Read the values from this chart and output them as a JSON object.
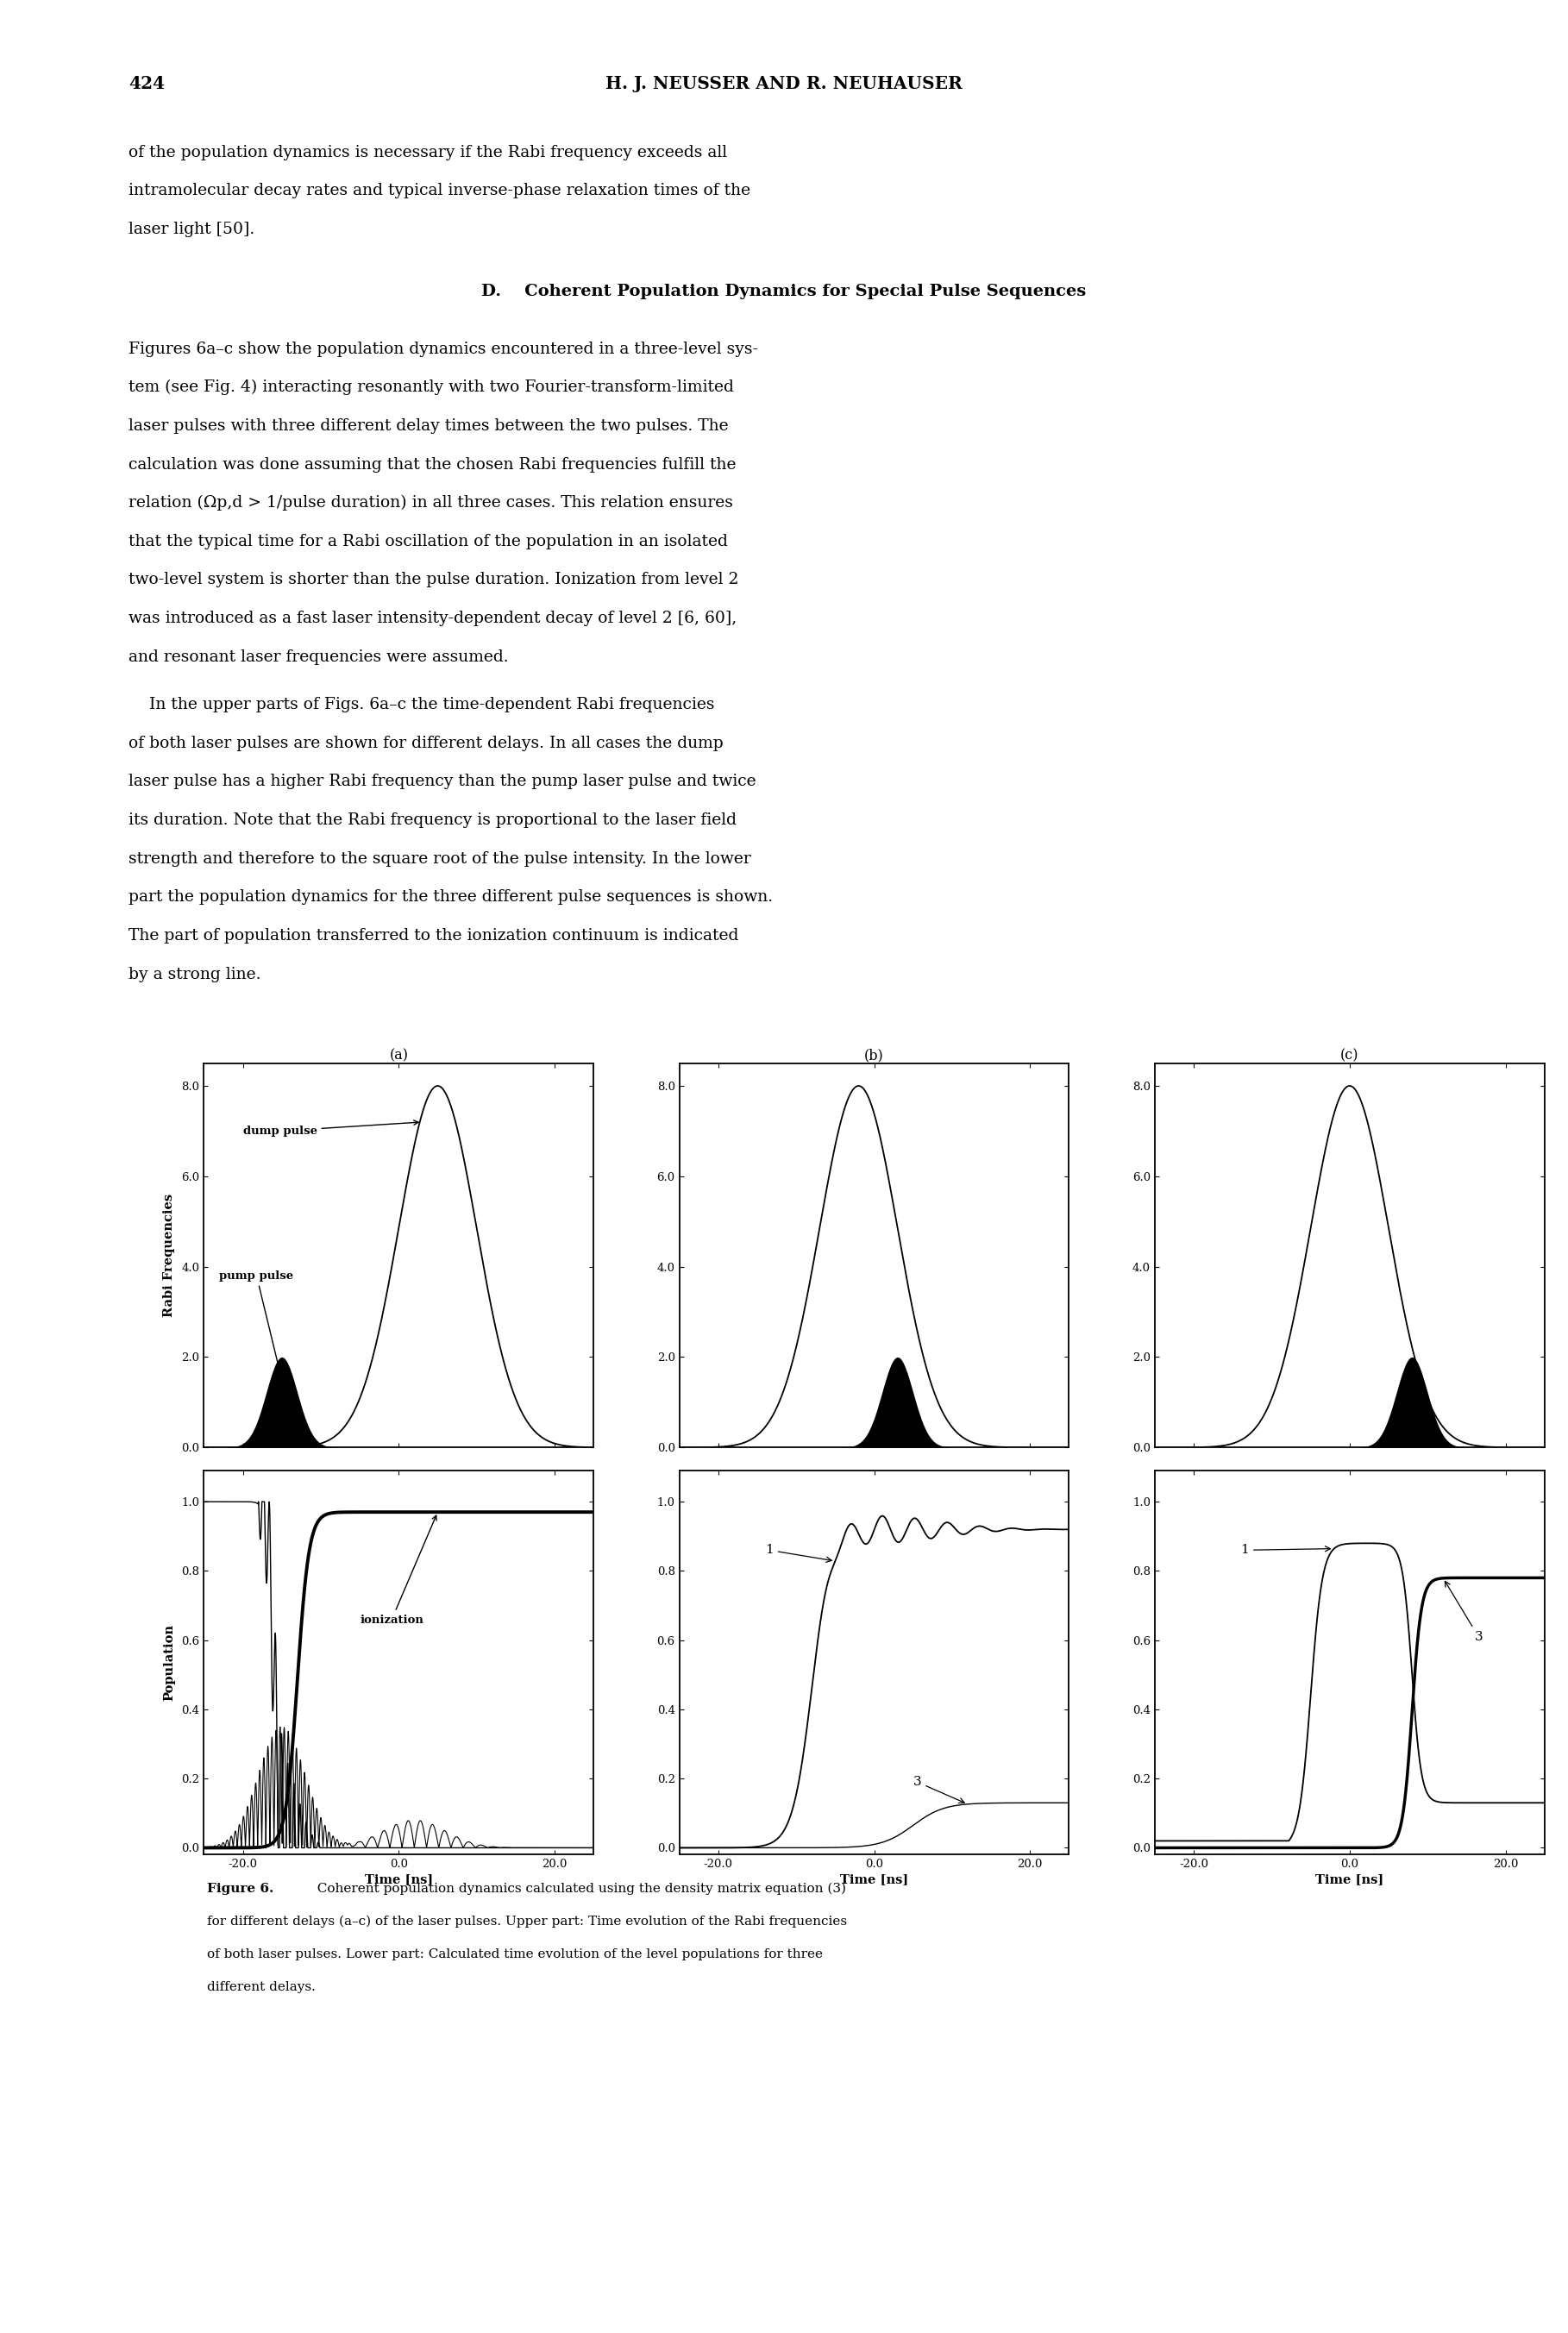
{
  "page_number": "424",
  "header_text": "H. J. NEUSSER AND R. NEUHAUSER",
  "section_title": "D.    Coherent Population Dynamics for Special Pulse Sequences",
  "subplot_labels": [
    "(a)",
    "(b)",
    "(c)"
  ],
  "upper_ylabel": "Rabi Frequencies",
  "lower_ylabel": "Population",
  "xlabel": "Time [ns]",
  "upper_ylim": [
    0,
    8.5
  ],
  "upper_yticks": [
    0.0,
    2.0,
    4.0,
    6.0,
    8.0
  ],
  "lower_ylim": [
    0,
    1.1
  ],
  "lower_yticks": [
    0.0,
    0.2,
    0.4,
    0.6,
    0.8,
    1.0
  ],
  "xtick_vals": [
    -20.0,
    0.0,
    20.0
  ],
  "xtick_labels": [
    "-20.0",
    "0.0",
    "20.0"
  ],
  "xlim": [
    -25,
    25
  ],
  "background_color": "#ffffff",
  "text_color": "#000000",
  "para0_lines": [
    "of the population dynamics is necessary if the Rabi frequency exceeds all",
    "intramolecular decay rates and typical inverse-phase relaxation times of the",
    "laser light [50]."
  ],
  "p1_lines": [
    "Figures 6a–c show the population dynamics encountered in a three-level sys-",
    "tem (see Fig. 4) interacting resonantly with two Fourier-transform-limited",
    "laser pulses with three different delay times between the two pulses. The",
    "calculation was done assuming that the chosen Rabi frequencies fulfill the",
    "relation (Ωp,d > 1/pulse duration) in all three cases. This relation ensures",
    "that the typical time for a Rabi oscillation of the population in an isolated",
    "two-level system is shorter than the pulse duration. Ionization from level 2",
    "was introduced as a fast laser intensity-dependent decay of level 2 [6, 60],",
    "and resonant laser frequencies were assumed."
  ],
  "p2_lines": [
    "    In the upper parts of Figs. 6a–c the time-dependent Rabi frequencies",
    "of both laser pulses are shown for different delays. In all cases the dump",
    "laser pulse has a higher Rabi frequency than the pump laser pulse and twice",
    "its duration. Note that the Rabi frequency is proportional to the laser field",
    "strength and therefore to the square root of the pulse intensity. In the lower",
    "part the population dynamics for the three different pulse sequences is shown.",
    "The part of population transferred to the ionization continuum is indicated",
    "by a strong line."
  ],
  "cap_line1": "Figure 6.",
  "cap_line1b": "   Coherent population dynamics calculated using the density matrix equation (3)",
  "cap_lines_rest": [
    "for different delays (a–c) of the laser pulses. Upper part: Time evolution of the Rabi frequencies",
    "of both laser pulses. Lower part: Calculated time evolution of the level populations for three",
    "different delays."
  ]
}
